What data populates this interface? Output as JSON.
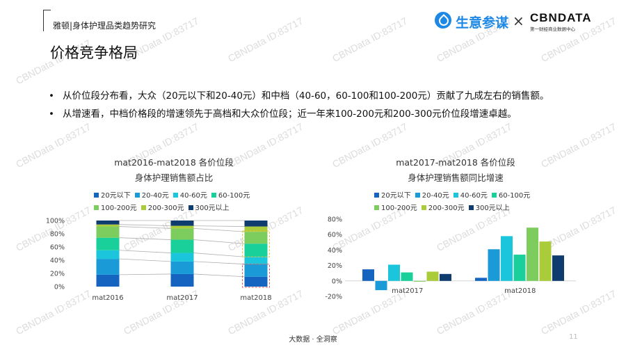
{
  "header": {
    "brand": "雅顿|身体护理品类趋势研究",
    "logo_sy": "生意参谋",
    "logo_x": "×",
    "logo_cbn": "CBNDATA",
    "logo_cbn_sub": "第一财经商业数据中心"
  },
  "page_title": "价格竞争格局",
  "bullets": [
    "从价位段分布看，大众（20元以下和20-40元）和中档（40-60，60-100和100-200元）贡献了九成左右的销售额。",
    "从增速看，中档价格段的增速领先于高档和大众价位段；近一年来100-200元和200-300元价位段增速卓越。"
  ],
  "watermark": "CBNData ID:83717",
  "footer": "大数据 · 全洞察",
  "page_number": "11",
  "colors": {
    "s20": "#1565c0",
    "s20_40": "#1a9bd7",
    "s40_60": "#1bc6dc",
    "s60_100": "#19cf9a",
    "s100_200": "#7ccd5e",
    "s200_300": "#aacc3a",
    "s300": "#0f3c6e"
  },
  "chart_data": [
    {
      "type": "bar",
      "stacked": true,
      "title": "mat2016-mat2018 各价位段",
      "subtitle": "身体护理销售额占比",
      "categories": [
        "mat2016",
        "mat2017",
        "mat2018"
      ],
      "y_ticks": [
        "0%",
        "20%",
        "40%",
        "60%",
        "80%",
        "100%"
      ],
      "ylim": [
        0,
        100
      ],
      "series": [
        {
          "name": "20元以下",
          "color": "#1565c0",
          "values": [
            18,
            19,
            15
          ]
        },
        {
          "name": "20-40元",
          "color": "#1a9bd7",
          "values": [
            24,
            19,
            19
          ]
        },
        {
          "name": "40-60元",
          "color": "#1bc6dc",
          "values": [
            13,
            13,
            11
          ]
        },
        {
          "name": "60-100元",
          "color": "#19cf9a",
          "values": [
            19,
            20,
            20
          ]
        },
        {
          "name": "100-200元",
          "color": "#7ccd5e",
          "values": [
            17,
            17,
            18
          ]
        },
        {
          "name": "200-300元",
          "color": "#aacc3a",
          "values": [
            3,
            4,
            8
          ]
        },
        {
          "name": "300元以上",
          "color": "#0f3c6e",
          "values": [
            6,
            8,
            9
          ]
        }
      ]
    },
    {
      "type": "bar",
      "title": "mat2017-mat2018 各价位段",
      "subtitle": "身体护理销售额同比增速",
      "categories": [
        "mat2017",
        "mat2018"
      ],
      "y_ticks": [
        "-20%",
        "0%",
        "20%",
        "40%",
        "60%",
        "80%"
      ],
      "ylim": [
        -20,
        80
      ],
      "series": [
        {
          "name": "20元以下",
          "color": "#1565c0",
          "values": [
            15,
            4
          ]
        },
        {
          "name": "20-40元",
          "color": "#1a9bd7",
          "values": [
            -12,
            41
          ]
        },
        {
          "name": "40-60元",
          "color": "#1bc6dc",
          "values": [
            21,
            58
          ]
        },
        {
          "name": "60-100元",
          "color": "#19cf9a",
          "values": [
            11,
            34
          ]
        },
        {
          "name": "100-200元",
          "color": "#7ccd5e",
          "values": [
            -1,
            69
          ]
        },
        {
          "name": "200-300元",
          "color": "#aacc3a",
          "values": [
            12,
            51
          ]
        },
        {
          "name": "300元以上",
          "color": "#0f3c6e",
          "values": [
            9,
            33
          ]
        }
      ]
    }
  ]
}
